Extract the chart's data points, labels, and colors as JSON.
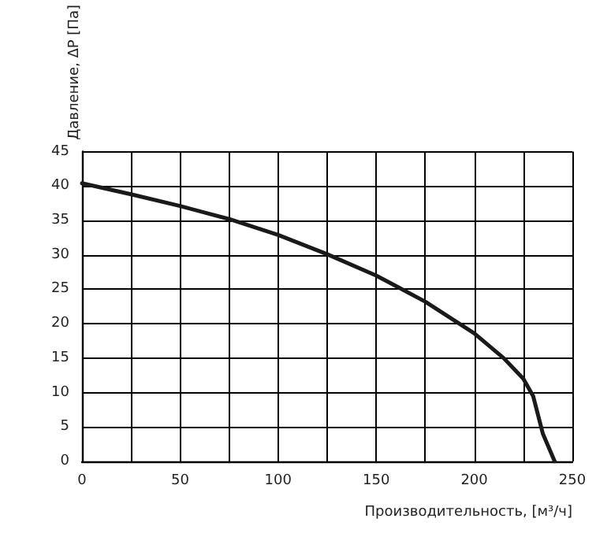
{
  "chart_data": {
    "type": "line",
    "xlabel": "Производительность, [м³/ч]",
    "ylabel": "Давление, ΔP [Па]",
    "series": [
      {
        "color": "#1a1a1a",
        "x": [
          0,
          25,
          50,
          75,
          100,
          125,
          150,
          175,
          200,
          215,
          225,
          230,
          235,
          241
        ],
        "values": [
          40.4,
          38.8,
          37.1,
          35.2,
          32.9,
          30.1,
          27,
          23.2,
          18.6,
          15,
          12,
          9.5,
          4,
          0
        ]
      }
    ],
    "xlim": [
      0,
      250
    ],
    "xticks": [
      0,
      {
        "value": 25,
        "label": null
      },
      50,
      {
        "value": 75,
        "label": null
      },
      100,
      {
        "value": 125,
        "label": null
      },
      150,
      {
        "value": 175,
        "label": null
      },
      200,
      {
        "value": 225,
        "label": null
      },
      250
    ],
    "ylim": [
      0,
      45
    ],
    "yticks": [
      0,
      5,
      10,
      15,
      20,
      25,
      30,
      35,
      40,
      45
    ],
    "grid": true,
    "marker": "none",
    "line_style": "solid"
  }
}
